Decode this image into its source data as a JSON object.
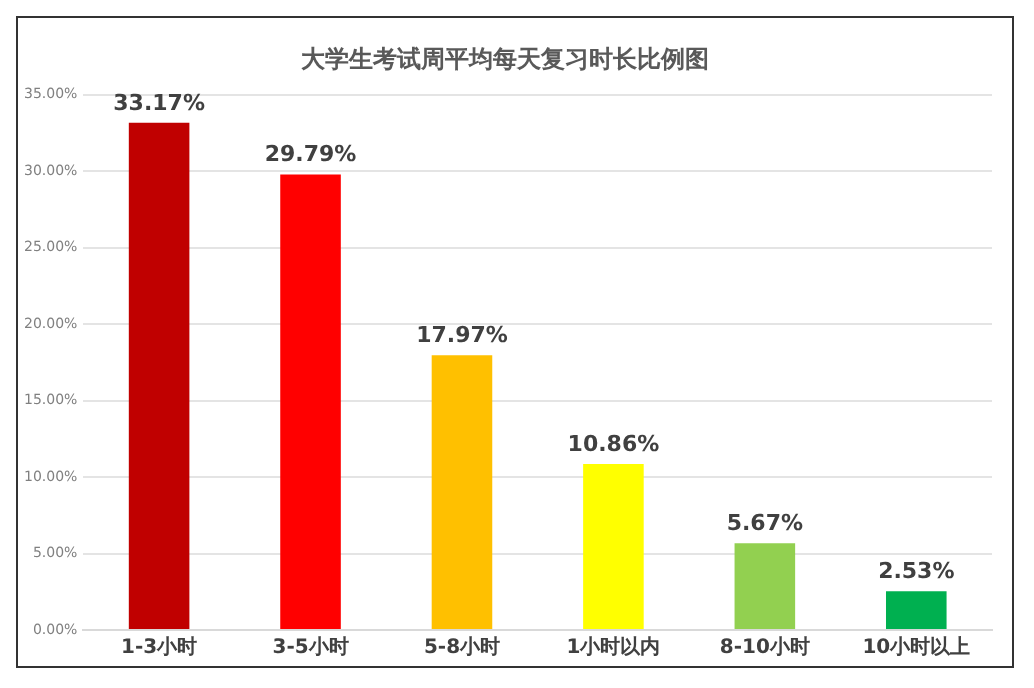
{
  "chart_data": {
    "type": "bar",
    "title": "大学生考试周平均每天复习时长比例图",
    "categories": [
      "1-3小时",
      "3-5小时",
      "5-8小时",
      "1小时以内",
      "8-10小时",
      "10小时以上"
    ],
    "values": [
      33.17,
      29.79,
      17.97,
      10.86,
      5.67,
      2.53
    ],
    "value_labels": [
      "33.17%",
      "29.79%",
      "17.97%",
      "10.86%",
      "5.67%",
      "2.53%"
    ],
    "colors": [
      "#c00000",
      "#ff0000",
      "#ffc000",
      "#ffff00",
      "#92d050",
      "#00b050"
    ],
    "ylim": [
      0,
      35
    ],
    "yticks": [
      {
        "value": 0,
        "label": "0.00%"
      },
      {
        "value": 5,
        "label": "5.00%"
      },
      {
        "value": 10,
        "label": "10.00%"
      },
      {
        "value": 15,
        "label": "15.00%"
      },
      {
        "value": 20,
        "label": "20.00%"
      },
      {
        "value": 25,
        "label": "25.00%"
      },
      {
        "value": 30,
        "label": "30.00%"
      },
      {
        "value": 35,
        "label": "35.00%"
      }
    ],
    "grid": "y",
    "legend": false
  }
}
